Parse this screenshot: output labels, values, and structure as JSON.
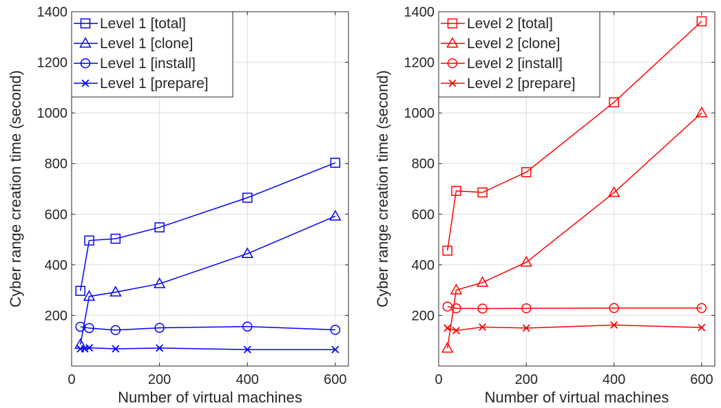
{
  "chart_data": [
    {
      "type": "line",
      "xlabel": "Number of virtual machines",
      "ylabel": "Cyber range creation time (second)",
      "xlim": [
        0,
        630
      ],
      "ylim": [
        0,
        1400
      ],
      "xticks": [
        0,
        200,
        400,
        600
      ],
      "yticks": [
        200,
        400,
        600,
        800,
        1000,
        1200,
        1400
      ],
      "grid": true,
      "legend_position": "top-left",
      "color": "#0000ff",
      "series": [
        {
          "name": "Level 1 [total]",
          "marker": "square",
          "x": [
            20,
            40,
            100,
            200,
            400,
            600
          ],
          "y": [
            297,
            496,
            503,
            548,
            665,
            803
          ]
        },
        {
          "name": "Level 1 [clone]",
          "marker": "triangle",
          "x": [
            20,
            40,
            100,
            200,
            400,
            600
          ],
          "y": [
            85,
            275,
            292,
            325,
            444,
            592
          ]
        },
        {
          "name": "Level 1 [install]",
          "marker": "circle",
          "x": [
            20,
            40,
            100,
            200,
            400,
            600
          ],
          "y": [
            155,
            150,
            142,
            151,
            156,
            143
          ]
        },
        {
          "name": "Level 1 [prepare]",
          "marker": "x",
          "x": [
            20,
            30,
            40,
            100,
            200,
            400,
            600
          ],
          "y": [
            68,
            68,
            72,
            68,
            71,
            65,
            65
          ]
        }
      ]
    },
    {
      "type": "line",
      "xlabel": "Number of virtual machines",
      "ylabel": "Cyber range creation time (second)",
      "xlim": [
        0,
        630
      ],
      "ylim": [
        0,
        1400
      ],
      "xticks": [
        0,
        200,
        400,
        600
      ],
      "yticks": [
        200,
        400,
        600,
        800,
        1000,
        1200,
        1400
      ],
      "grid": true,
      "legend_position": "top-left",
      "color": "#ff0000",
      "series": [
        {
          "name": "Level 2 [total]",
          "marker": "square",
          "x": [
            20,
            40,
            100,
            200,
            400,
            600
          ],
          "y": [
            456,
            692,
            686,
            766,
            1042,
            1362
          ]
        },
        {
          "name": "Level 2 [clone]",
          "marker": "triangle",
          "x": [
            20,
            40,
            100,
            200,
            400,
            600
          ],
          "y": [
            70,
            300,
            330,
            410,
            685,
            1000
          ]
        },
        {
          "name": "Level 2 [install]",
          "marker": "circle",
          "x": [
            20,
            40,
            100,
            200,
            400,
            600
          ],
          "y": [
            235,
            228,
            227,
            228,
            229,
            229
          ]
        },
        {
          "name": "Level 2 [prepare]",
          "marker": "x",
          "x": [
            20,
            40,
            100,
            200,
            400,
            600
          ],
          "y": [
            150,
            140,
            154,
            150,
            162,
            152
          ]
        }
      ]
    }
  ]
}
